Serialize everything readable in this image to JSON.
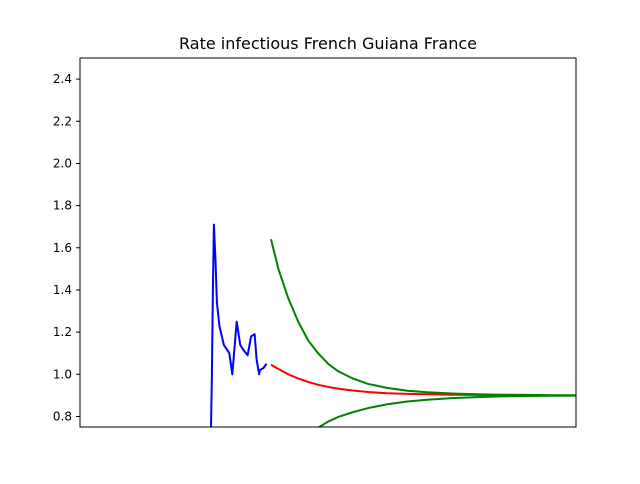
{
  "chart_data": {
    "type": "line",
    "title": "Rate infectious French Guiana France",
    "xlabel": "",
    "ylabel": "",
    "xlim": [
      0,
      100
    ],
    "ylim": [
      0.75,
      2.5
    ],
    "yticks": [
      0.8,
      1.0,
      1.2,
      1.4,
      1.6,
      1.8,
      2.0,
      2.2,
      2.4
    ],
    "ytick_labels": [
      "0.8",
      "1.0",
      "1.2",
      "1.4",
      "1.6",
      "1.8",
      "2.0",
      "2.2",
      "2.4"
    ],
    "xticks": [],
    "grid": false,
    "legend": "none",
    "series": [
      {
        "color": "#0000ff",
        "x": [
          26.4,
          26.6,
          26.8,
          27.0,
          27.3,
          27.6,
          28.1,
          29.0,
          30.1,
          30.7,
          31.6,
          32.3,
          32.8,
          33.8,
          34.5,
          35.2,
          35.6,
          36.1,
          36.3,
          37.0,
          37.6
        ],
        "values": [
          0.72,
          1.0,
          1.4,
          1.71,
          1.55,
          1.34,
          1.23,
          1.14,
          1.1,
          1.0,
          1.25,
          1.14,
          1.12,
          1.09,
          1.18,
          1.19,
          1.07,
          1.0,
          1.02,
          1.03,
          1.05
        ]
      },
      {
        "color": "#ff0000",
        "x": [
          38.5,
          40,
          42,
          44,
          46,
          48,
          50,
          52,
          55,
          58,
          62,
          66,
          70,
          75,
          80,
          85,
          90,
          95,
          100
        ],
        "values": [
          1.045,
          1.025,
          1.0,
          0.98,
          0.964,
          0.95,
          0.94,
          0.932,
          0.923,
          0.916,
          0.91,
          0.907,
          0.905,
          0.903,
          0.902,
          0.901,
          0.9,
          0.9,
          0.9
        ]
      },
      {
        "color": "#008000",
        "x": [
          38.5,
          40,
          42,
          44,
          46,
          48,
          50,
          52,
          55,
          58,
          62,
          66,
          70,
          75,
          80,
          85,
          90,
          95,
          100
        ],
        "values": [
          1.64,
          1.5,
          1.36,
          1.25,
          1.16,
          1.1,
          1.05,
          1.015,
          0.98,
          0.955,
          0.935,
          0.922,
          0.915,
          0.909,
          0.905,
          0.903,
          0.902,
          0.901,
          0.9
        ]
      },
      {
        "color": "#008000",
        "x": [
          47.5,
          50,
          52,
          55,
          58,
          62,
          66,
          70,
          75,
          80,
          85,
          90,
          95,
          100
        ],
        "values": [
          0.74,
          0.775,
          0.797,
          0.82,
          0.839,
          0.858,
          0.871,
          0.879,
          0.887,
          0.892,
          0.895,
          0.897,
          0.898,
          0.899
        ]
      }
    ]
  }
}
